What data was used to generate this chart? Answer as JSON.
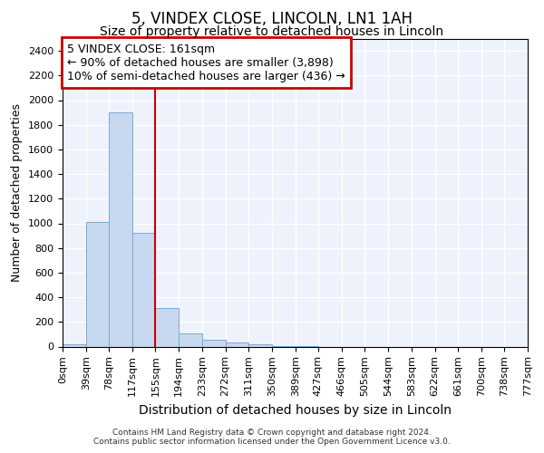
{
  "title": "5, VINDEX CLOSE, LINCOLN, LN1 1AH",
  "subtitle": "Size of property relative to detached houses in Lincoln",
  "xlabel": "Distribution of detached houses by size in Lincoln",
  "ylabel": "Number of detached properties",
  "bin_edges": [
    0,
    39,
    78,
    117,
    155,
    194,
    233,
    272,
    311,
    350,
    389,
    427,
    466,
    505,
    544,
    583,
    622,
    661,
    700,
    738,
    777
  ],
  "bar_heights": [
    20,
    1010,
    1900,
    920,
    315,
    105,
    55,
    35,
    20,
    5,
    2,
    0,
    0,
    0,
    0,
    0,
    0,
    0,
    0,
    0
  ],
  "bar_color": "#c8d8f0",
  "bar_edgecolor": "#7aaad0",
  "vertical_line_x": 155,
  "vertical_line_color": "#cc0000",
  "ylim": [
    0,
    2500
  ],
  "yticks": [
    0,
    200,
    400,
    600,
    800,
    1000,
    1200,
    1400,
    1600,
    1800,
    2000,
    2200,
    2400
  ],
  "annotation_title": "5 VINDEX CLOSE: 161sqm",
  "annotation_line1": "← 90% of detached houses are smaller (3,898)",
  "annotation_line2": "10% of semi-detached houses are larger (436) →",
  "annotation_box_color": "#cc0000",
  "background_color": "#eef2fc",
  "grid_color": "#ffffff",
  "footer_line1": "Contains HM Land Registry data © Crown copyright and database right 2024.",
  "footer_line2": "Contains public sector information licensed under the Open Government Licence v3.0.",
  "title_fontsize": 12,
  "subtitle_fontsize": 10,
  "ylabel_fontsize": 9,
  "xlabel_fontsize": 10,
  "tick_label_fontsize": 8,
  "ytick_fontsize": 8,
  "annotation_fontsize": 9,
  "footer_fontsize": 6.5
}
